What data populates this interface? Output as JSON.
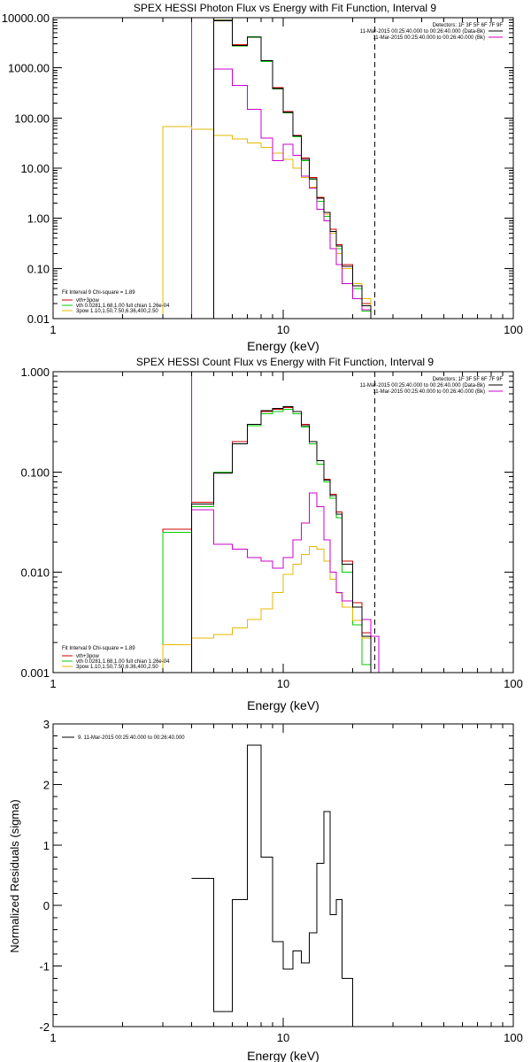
{
  "colors": {
    "background": "#ffffff",
    "axes": "#000000",
    "data": "#000000",
    "total_fit": "#cc0000",
    "thermal": "#00cc00",
    "power_law": "#e6b800",
    "background_model": "#cc00cc"
  },
  "chart_data": [
    {
      "type": "line",
      "step": true,
      "title": "SPEX HESSI Photon Flux vs Energy with Fit Function, Interval 9",
      "xlabel": "Energy (keV)",
      "ylabel": "",
      "xscale": "log",
      "yscale": "log",
      "xlim": [
        1,
        100
      ],
      "ylim": [
        0.01,
        10000
      ],
      "xticks": [
        "1",
        "10",
        "100"
      ],
      "yticks": [
        "0.01",
        "0.10",
        "1.00",
        "10.00",
        "100.00",
        "1000.00",
        "10000.00"
      ],
      "bin_edges": [
        3,
        4,
        5,
        6,
        7,
        8,
        9,
        10,
        11,
        12,
        13,
        14,
        15,
        16,
        17,
        18,
        20,
        22,
        24,
        26
      ],
      "series": [
        {
          "name": "vth+3pow",
          "color": "#cc0000",
          "values": [
            null,
            null,
            9000,
            2900,
            4200,
            1400,
            400,
            135,
            45,
            16,
            6.5,
            2.6,
            1.3,
            0.6,
            0.3,
            0.12,
            0.05,
            0.02,
            null
          ]
        },
        {
          "name": "vth 0.0281,1.68,1.00 full chian 1.26e-04",
          "color": "#00cc00",
          "values": [
            null,
            null,
            8800,
            2700,
            4200,
            1350,
            380,
            128,
            42,
            14,
            6,
            2.2,
            1.1,
            0.5,
            0.25,
            0.1,
            0.04,
            0.014,
            null
          ]
        },
        {
          "name": "3pow 1.10,1.50,7.50,6.36,400,2.50",
          "color": "#e6b800",
          "values": [
            68,
            60,
            45,
            38,
            32,
            26,
            20,
            15,
            10,
            6.5,
            4.2,
            2.5,
            1.2,
            0.5,
            0.2,
            0.1,
            0.05,
            0.025,
            null
          ]
        },
        {
          "name": "11-Mar-2015 00:25:40.000 to 00:26:40.000 (Bk)",
          "color": "#cc00cc",
          "values": [
            null,
            null,
            950,
            450,
            150,
            40,
            14,
            30,
            18,
            7,
            4,
            1.5,
            0.9,
            0.25,
            0.12,
            0.05,
            0.025,
            0.015,
            null
          ]
        },
        {
          "name": "11-Mar-2015 00:25:40.000 to 00:26:40.000 (Data-Bk)",
          "color": "#000000",
          "values": [
            null,
            null,
            8700,
            2800,
            4100,
            1400,
            390,
            130,
            44,
            15,
            6.2,
            2.5,
            1.3,
            0.55,
            0.28,
            0.11,
            0.045,
            0.018,
            null
          ]
        }
      ],
      "legend_header": "Detectors: 1F 3F 5F 6F 7F 9F",
      "legend_right": [
        "11-Mar-2015 00:25:40.000 to 00:26:40.000 (Data-Bk)",
        "11-Mar-2015 00:25:40.000 to 00:26:40.000 (Bk)"
      ],
      "legend_left_title": "Fit Interval 9   Chi-square = 1.89",
      "legend_left": [
        "vth+3pow",
        "vth 0.0281,1.68,1.00 full chian 1.26e-04",
        "3pow 1.10,1.50,7.50,6.36,400,2.50"
      ],
      "legend_placement": [
        "top-right",
        "bottom-left"
      ],
      "vlines": [
        {
          "x": 4,
          "style": "solid",
          "color": "#cc00cc"
        },
        {
          "x": 25,
          "style": "dashed",
          "color": "#000000"
        }
      ]
    },
    {
      "type": "line",
      "step": true,
      "title": "SPEX HESSI Count Flux vs Energy with Fit Function, Interval 9",
      "xlabel": "Energy (keV)",
      "ylabel": "",
      "xscale": "log",
      "yscale": "log",
      "xlim": [
        1,
        100
      ],
      "ylim": [
        0.001,
        1
      ],
      "xticks": [
        "1",
        "10",
        "100"
      ],
      "yticks": [
        "0.001",
        "0.010",
        "0.100",
        "1.000"
      ],
      "bin_edges": [
        3,
        4,
        5,
        6,
        7,
        8,
        9,
        10,
        11,
        12,
        13,
        14,
        15,
        16,
        17,
        18,
        20,
        22,
        24,
        26
      ],
      "series": [
        {
          "name": "vth+3pow",
          "color": "#cc0000",
          "values": [
            0.027,
            0.05,
            0.1,
            0.2,
            0.3,
            0.4,
            0.42,
            0.44,
            0.4,
            0.3,
            0.2,
            0.13,
            0.085,
            0.06,
            0.04,
            0.013,
            0.005,
            0.0025,
            0.001
          ]
        },
        {
          "name": "vth 0.0281,1.68,1.00 full chian 1.26e-04",
          "color": "#00cc00",
          "values": [
            0.025,
            0.045,
            0.1,
            0.19,
            0.29,
            0.38,
            0.4,
            0.42,
            0.38,
            0.28,
            0.19,
            0.12,
            0.08,
            0.055,
            0.035,
            0.01,
            0.003,
            0.0012,
            null
          ]
        },
        {
          "name": "3pow 1.10,1.50,7.50,6.36,400,2.50",
          "color": "#e6b800",
          "values": [
            0.0019,
            0.0022,
            0.0024,
            0.0028,
            0.0034,
            0.0043,
            0.0063,
            0.0095,
            0.012,
            0.015,
            0.018,
            0.017,
            0.013,
            0.0085,
            0.0062,
            0.0045,
            0.0033,
            0.0022,
            null
          ]
        },
        {
          "name": "11-Mar-2015 00:25:40.000 to 00:26:40.000 (Bk)",
          "color": "#cc00cc",
          "values": [
            null,
            0.042,
            0.019,
            0.017,
            0.014,
            0.013,
            0.011,
            0.014,
            0.021,
            0.031,
            0.062,
            0.045,
            0.021,
            0.01,
            0.0063,
            0.0052,
            0.0045,
            0.0034,
            0.0023
          ]
        },
        {
          "name": "11-Mar-2015 00:25:40.000 to 00:26:40.000 (Data-Bk)",
          "color": "#000000",
          "values": [
            null,
            0.048,
            0.098,
            0.19,
            0.3,
            0.41,
            0.43,
            0.45,
            0.4,
            0.29,
            0.2,
            0.13,
            0.083,
            0.058,
            0.038,
            0.012,
            0.0045,
            0.0023,
            0.001
          ]
        }
      ],
      "legend_header": "Detectors: 1F 3F 5F 6F 7F 9F",
      "legend_right": [
        "11-Mar-2015 00:25:40.000 to 00:26:40.000 (Data-Bk)",
        "11-Mar-2015 00:25:40.000 to 00:26:40.000 (Bk)"
      ],
      "legend_left_title": "Fit Interval 9   Chi-square = 1.89",
      "legend_left": [
        "vth+3pow",
        "vth 0.0281,1.68,1.00 full chian 1.26e-04",
        "3pow 1.10,1.50,7.50,6.36,400,2.50"
      ],
      "legend_placement": [
        "top-right",
        "bottom-left"
      ],
      "vlines": [
        {
          "x": 4,
          "style": "dotted",
          "color": "#000000"
        },
        {
          "x": 4,
          "style": "solid",
          "color": "#cc00cc"
        },
        {
          "x": 25,
          "style": "dashed",
          "color": "#000000"
        }
      ]
    },
    {
      "type": "line",
      "step": true,
      "title": "",
      "xlabel": "Energy (keV)",
      "ylabel": "Normalized Residuals (sigma)",
      "xscale": "log",
      "yscale": "linear",
      "xlim": [
        1,
        100
      ],
      "ylim": [
        -2,
        3
      ],
      "xticks": [
        "1",
        "10",
        "100"
      ],
      "yticks": [
        "-2",
        "-1",
        "0",
        "1",
        "2",
        "3"
      ],
      "bin_edges": [
        4,
        5,
        6,
        7,
        8,
        9,
        10,
        11,
        12,
        13,
        14,
        15,
        16,
        17,
        18,
        20,
        22,
        24,
        26
      ],
      "series": [
        {
          "name": "9. 11-Mar-2015 00:25:40.000 to 00:26:40.000",
          "color": "#000000",
          "values": [
            0.45,
            -1.75,
            0.1,
            2.65,
            0.8,
            -0.6,
            -1.05,
            -0.75,
            -0.95,
            -0.45,
            0.7,
            1.55,
            -0.15,
            0.1,
            -1.2,
            -2.0
          ]
        }
      ],
      "legend_placement": "top-left"
    }
  ]
}
